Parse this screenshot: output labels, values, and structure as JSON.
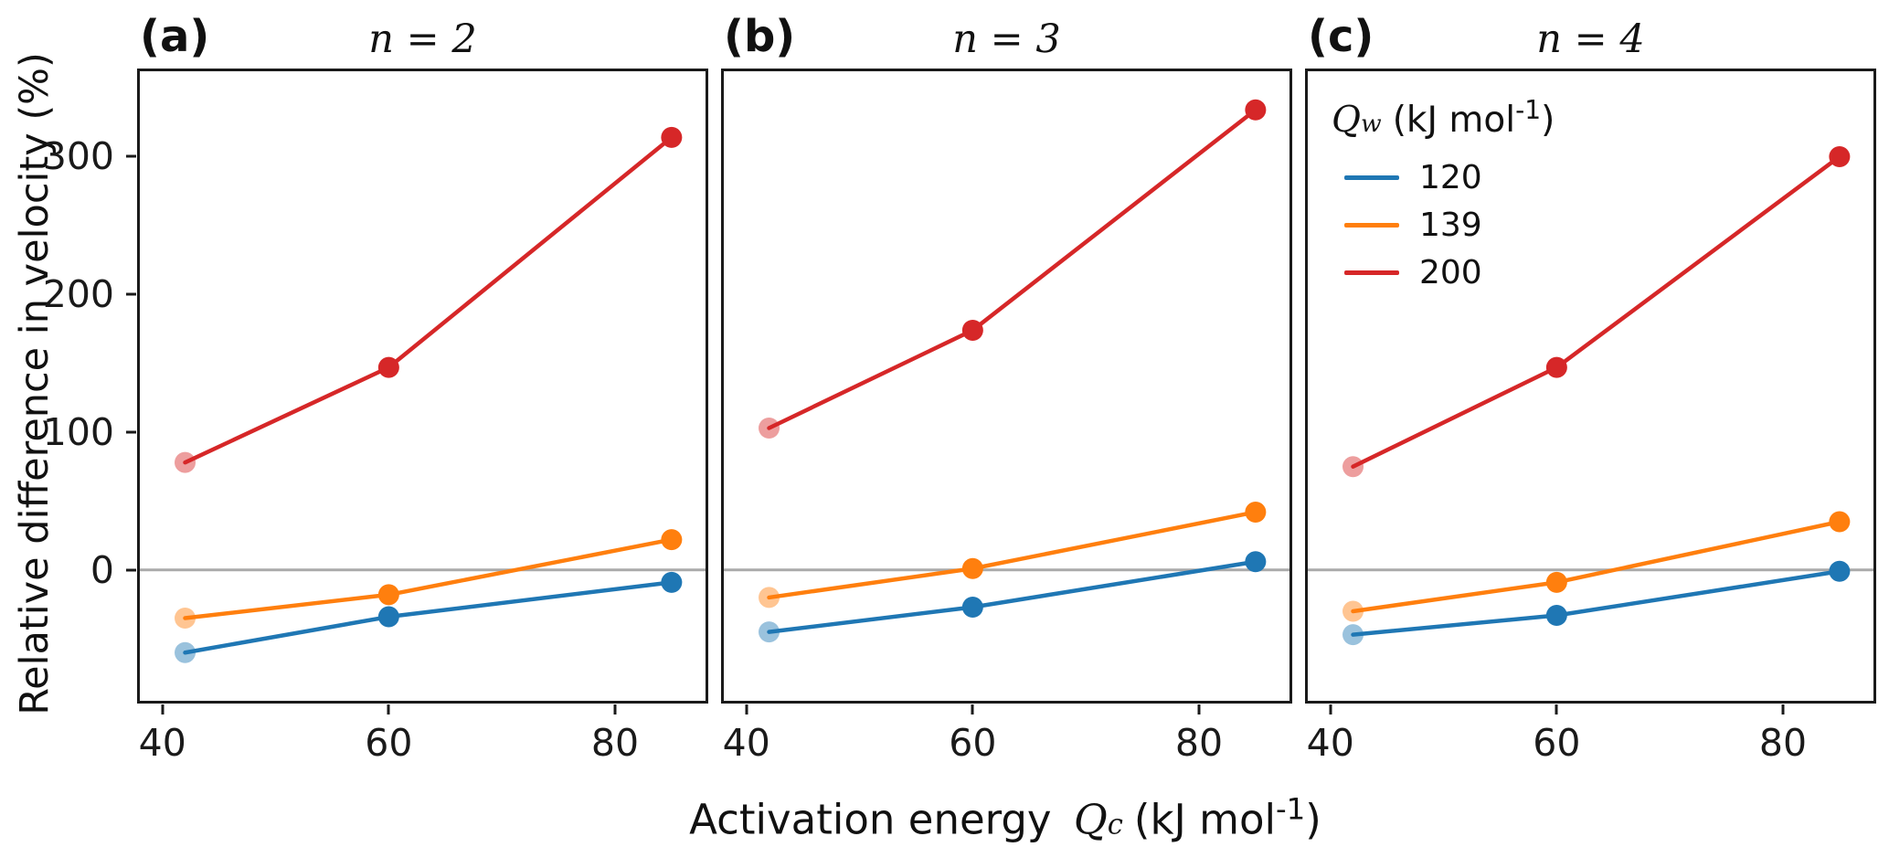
{
  "figure": {
    "ylabel": "Relative difference in velocity (%)",
    "xlabel": {
      "text": "Activation energy",
      "var": "Q",
      "sub": "c",
      "units_prefix": "(kJ mol",
      "units_sup": "-1",
      "units_suffix": ")"
    }
  },
  "legend": {
    "title_var": "Q",
    "title_sub": "w",
    "units_prefix": "(kJ mol",
    "units_sup": "-1",
    "units_suffix": ")",
    "position": "top-left of panel c"
  },
  "style": {
    "colors": {
      "blue": "#1f77b4",
      "orange": "#ff7f0e",
      "red": "#d62728"
    },
    "zero_line_color": "#aaaaaa",
    "faded_marker_opacity": 0.45,
    "grid": "off"
  },
  "chart_data": [
    {
      "type": "line",
      "letter": "(a)",
      "title": "n = 2",
      "x": [
        42,
        60,
        85
      ],
      "series": [
        {
          "name": "120",
          "color": "#1f77b4",
          "values": [
            -60,
            -34,
            -9
          ]
        },
        {
          "name": "139",
          "color": "#ff7f0e",
          "values": [
            -35,
            -18,
            22
          ]
        },
        {
          "name": "200",
          "color": "#d62728",
          "values": [
            78,
            147,
            314
          ]
        }
      ],
      "xlim": [
        38,
        88
      ],
      "ylim": [
        -95,
        362
      ],
      "xticks": [
        40,
        60,
        80
      ],
      "yticks": [
        0,
        100,
        200,
        300
      ],
      "show_ytick_labels": true,
      "zero_line": true
    },
    {
      "type": "line",
      "letter": "(b)",
      "title": "n = 3",
      "x": [
        42,
        60,
        85
      ],
      "series": [
        {
          "name": "120",
          "color": "#1f77b4",
          "values": [
            -45,
            -27,
            6
          ]
        },
        {
          "name": "139",
          "color": "#ff7f0e",
          "values": [
            -20,
            1,
            42
          ]
        },
        {
          "name": "200",
          "color": "#d62728",
          "values": [
            103,
            174,
            334
          ]
        }
      ],
      "xlim": [
        38,
        88
      ],
      "ylim": [
        -95,
        362
      ],
      "xticks": [
        40,
        60,
        80
      ],
      "yticks": [
        0,
        100,
        200,
        300
      ],
      "show_ytick_labels": false,
      "zero_line": true
    },
    {
      "type": "line",
      "letter": "(c)",
      "title": "n = 4",
      "x": [
        42,
        60,
        85
      ],
      "series": [
        {
          "name": "120",
          "color": "#1f77b4",
          "values": [
            -47,
            -33,
            -1
          ]
        },
        {
          "name": "139",
          "color": "#ff7f0e",
          "values": [
            -30,
            -9,
            35
          ]
        },
        {
          "name": "200",
          "color": "#d62728",
          "values": [
            75,
            147,
            300
          ]
        }
      ],
      "xlim": [
        38,
        88
      ],
      "ylim": [
        -95,
        362
      ],
      "xticks": [
        40,
        60,
        80
      ],
      "yticks": [
        0,
        100,
        200,
        300
      ],
      "show_ytick_labels": false,
      "zero_line": true
    }
  ]
}
